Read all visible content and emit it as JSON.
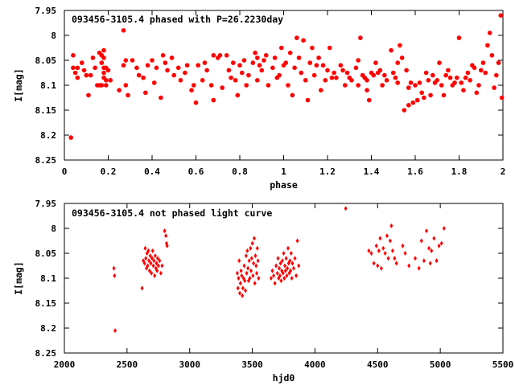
{
  "colors": {
    "marker": "#ff0000",
    "frame": "#000000",
    "background": "#ffffff"
  },
  "chart_data": [
    {
      "type": "scatter",
      "title": "093456-3105.4 phased with P=26.2230day",
      "xlabel": "phase",
      "ylabel": "I[mag]",
      "xlim": [
        0,
        2
      ],
      "ylim": [
        8.25,
        7.95
      ],
      "y_inverted": true,
      "grid": false,
      "legend": "none",
      "xticks": [
        "0",
        "0.2",
        "0.4",
        "0.6",
        "0.8",
        "1",
        "1.2",
        "1.4",
        "1.6",
        "1.8",
        "2"
      ],
      "yticks": [
        "7.95",
        "8",
        "8.05",
        "8.1",
        "8.15",
        "8.2",
        "8.25"
      ],
      "marker": "filled-circle-large",
      "points": [
        [
          0.03,
          8.205
        ],
        [
          0.04,
          8.04
        ],
        [
          0.04,
          8.065
        ],
        [
          0.05,
          8.075
        ],
        [
          0.06,
          8.065
        ],
        [
          0.06,
          8.085
        ],
        [
          0.08,
          8.055
        ],
        [
          0.09,
          8.07
        ],
        [
          0.1,
          8.08
        ],
        [
          0.11,
          8.12
        ],
        [
          0.12,
          8.08
        ],
        [
          0.13,
          8.045
        ],
        [
          0.14,
          8.065
        ],
        [
          0.15,
          8.1
        ],
        [
          0.16,
          8.035
        ],
        [
          0.16,
          8.1
        ],
        [
          0.17,
          8.04
        ],
        [
          0.17,
          8.055
        ],
        [
          0.17,
          8.1
        ],
        [
          0.18,
          8.03
        ],
        [
          0.18,
          8.045
        ],
        [
          0.18,
          8.065
        ],
        [
          0.18,
          8.075
        ],
        [
          0.18,
          8.085
        ],
        [
          0.19,
          8.09
        ],
        [
          0.19,
          8.1
        ],
        [
          0.19,
          8.065
        ],
        [
          0.2,
          8.07
        ],
        [
          0.21,
          8.09
        ],
        [
          0.25,
          8.11
        ],
        [
          0.27,
          7.99
        ],
        [
          0.27,
          8.06
        ],
        [
          0.28,
          8.05
        ],
        [
          0.28,
          8.1
        ],
        [
          0.29,
          8.12
        ],
        [
          0.31,
          8.05
        ],
        [
          0.33,
          8.065
        ],
        [
          0.34,
          8.08
        ],
        [
          0.36,
          8.085
        ],
        [
          0.37,
          8.115
        ],
        [
          0.38,
          8.06
        ],
        [
          0.4,
          8.05
        ],
        [
          0.41,
          8.095
        ],
        [
          0.42,
          8.065
        ],
        [
          0.44,
          8.125
        ],
        [
          0.45,
          8.04
        ],
        [
          0.46,
          8.055
        ],
        [
          0.47,
          8.07
        ],
        [
          0.49,
          8.045
        ],
        [
          0.5,
          8.08
        ],
        [
          0.52,
          8.065
        ],
        [
          0.53,
          8.09
        ],
        [
          0.55,
          8.075
        ],
        [
          0.56,
          8.06
        ],
        [
          0.58,
          8.11
        ],
        [
          0.59,
          8.1
        ],
        [
          0.6,
          8.135
        ],
        [
          0.61,
          8.06
        ],
        [
          0.63,
          8.09
        ],
        [
          0.64,
          8.055
        ],
        [
          0.65,
          8.07
        ],
        [
          0.67,
          8.1
        ],
        [
          0.68,
          8.04
        ],
        [
          0.68,
          8.13
        ],
        [
          0.7,
          8.045
        ],
        [
          0.71,
          8.04
        ],
        [
          0.72,
          8.105
        ],
        [
          0.74,
          8.04
        ],
        [
          0.75,
          8.07
        ],
        [
          0.76,
          8.085
        ],
        [
          0.77,
          8.055
        ],
        [
          0.78,
          8.09
        ],
        [
          0.79,
          8.12
        ],
        [
          0.8,
          8.06
        ],
        [
          0.81,
          8.075
        ],
        [
          0.82,
          8.05
        ],
        [
          0.83,
          8.1
        ],
        [
          0.84,
          8.08
        ],
        [
          0.86,
          8.055
        ],
        [
          0.87,
          8.035
        ],
        [
          0.88,
          8.09
        ],
        [
          0.88,
          8.045
        ],
        [
          0.89,
          8.06
        ],
        [
          0.9,
          8.07
        ],
        [
          0.91,
          8.05
        ],
        [
          0.92,
          8.04
        ],
        [
          0.93,
          8.1
        ],
        [
          0.95,
          8.065
        ],
        [
          0.96,
          8.045
        ],
        [
          0.97,
          8.085
        ],
        [
          0.98,
          8.08
        ],
        [
          0.99,
          8.025
        ],
        [
          1.0,
          8.06
        ],
        [
          1.01,
          8.055
        ],
        [
          1.02,
          8.1
        ],
        [
          1.03,
          8.035
        ],
        [
          1.04,
          8.12
        ],
        [
          1.05,
          8.065
        ],
        [
          1.06,
          8.005
        ],
        [
          1.07,
          8.045
        ],
        [
          1.08,
          8.075
        ],
        [
          1.09,
          8.01
        ],
        [
          1.1,
          8.09
        ],
        [
          1.11,
          8.13
        ],
        [
          1.12,
          8.055
        ],
        [
          1.13,
          8.025
        ],
        [
          1.14,
          8.08
        ],
        [
          1.15,
          8.06
        ],
        [
          1.16,
          8.045
        ],
        [
          1.17,
          8.11
        ],
        [
          1.18,
          8.06
        ],
        [
          1.19,
          8.09
        ],
        [
          1.2,
          8.07
        ],
        [
          1.21,
          8.025
        ],
        [
          1.22,
          8.085
        ],
        [
          1.23,
          8.075
        ],
        [
          1.24,
          8.085
        ],
        [
          1.26,
          8.06
        ],
        [
          1.27,
          8.07
        ],
        [
          1.28,
          8.1
        ],
        [
          1.29,
          8.075
        ],
        [
          1.3,
          8.085
        ],
        [
          1.31,
          8.09
        ],
        [
          1.33,
          8.065
        ],
        [
          1.34,
          8.05
        ],
        [
          1.34,
          8.1
        ],
        [
          1.35,
          8.005
        ],
        [
          1.36,
          8.08
        ],
        [
          1.37,
          8.085
        ],
        [
          1.38,
          8.09
        ],
        [
          1.38,
          8.11
        ],
        [
          1.39,
          8.13
        ],
        [
          1.4,
          8.075
        ],
        [
          1.41,
          8.08
        ],
        [
          1.42,
          8.055
        ],
        [
          1.43,
          8.075
        ],
        [
          1.44,
          8.07
        ],
        [
          1.45,
          8.1
        ],
        [
          1.46,
          8.08
        ],
        [
          1.47,
          8.09
        ],
        [
          1.49,
          8.03
        ],
        [
          1.5,
          8.075
        ],
        [
          1.51,
          8.085
        ],
        [
          1.52,
          8.095
        ],
        [
          1.52,
          8.055
        ],
        [
          1.53,
          8.02
        ],
        [
          1.54,
          8.045
        ],
        [
          1.55,
          8.15
        ],
        [
          1.56,
          8.07
        ],
        [
          1.57,
          8.105
        ],
        [
          1.57,
          8.14
        ],
        [
          1.58,
          8.095
        ],
        [
          1.59,
          8.135
        ],
        [
          1.6,
          8.1
        ],
        [
          1.61,
          8.13
        ],
        [
          1.62,
          8.095
        ],
        [
          1.63,
          8.115
        ],
        [
          1.64,
          8.125
        ],
        [
          1.65,
          8.075
        ],
        [
          1.66,
          8.09
        ],
        [
          1.67,
          8.12
        ],
        [
          1.68,
          8.08
        ],
        [
          1.69,
          8.095
        ],
        [
          1.7,
          8.09
        ],
        [
          1.71,
          8.055
        ],
        [
          1.72,
          8.1
        ],
        [
          1.73,
          8.12
        ],
        [
          1.74,
          8.08
        ],
        [
          1.75,
          8.07
        ],
        [
          1.76,
          8.085
        ],
        [
          1.77,
          8.1
        ],
        [
          1.78,
          8.095
        ],
        [
          1.79,
          8.085
        ],
        [
          1.8,
          8.005
        ],
        [
          1.81,
          8.095
        ],
        [
          1.82,
          8.11
        ],
        [
          1.83,
          8.085
        ],
        [
          1.84,
          8.075
        ],
        [
          1.85,
          8.09
        ],
        [
          1.86,
          8.06
        ],
        [
          1.87,
          8.065
        ],
        [
          1.88,
          8.115
        ],
        [
          1.89,
          8.1
        ],
        [
          1.9,
          8.07
        ],
        [
          1.91,
          8.055
        ],
        [
          1.92,
          8.075
        ],
        [
          1.93,
          8.02
        ],
        [
          1.94,
          7.995
        ],
        [
          1.95,
          8.04
        ],
        [
          1.96,
          8.105
        ],
        [
          1.97,
          8.08
        ],
        [
          1.98,
          8.055
        ],
        [
          1.99,
          7.96
        ],
        [
          1.995,
          8.125
        ]
      ]
    },
    {
      "type": "scatter",
      "title": "093456-3105.4 not phased light curve",
      "xlabel": "hjd0",
      "ylabel": "I[mag]",
      "xlim": [
        2000,
        5500
      ],
      "ylim": [
        8.25,
        7.95
      ],
      "y_inverted": true,
      "grid": false,
      "legend": "none",
      "xticks": [
        "2000",
        "2500",
        "3000",
        "3500",
        "4000",
        "4500",
        "5000",
        "5500"
      ],
      "yticks": [
        "7.95",
        "8",
        "8.05",
        "8.1",
        "8.15",
        "8.2",
        "8.25"
      ],
      "marker": "filled-diamond-small",
      "points": [
        [
          2395,
          8.08
        ],
        [
          2400,
          8.095
        ],
        [
          2405,
          8.205
        ],
        [
          2620,
          8.12
        ],
        [
          2630,
          8.065
        ],
        [
          2640,
          8.07
        ],
        [
          2645,
          8.04
        ],
        [
          2650,
          8.06
        ],
        [
          2655,
          8.08
        ],
        [
          2660,
          8.05
        ],
        [
          2665,
          8.075
        ],
        [
          2670,
          8.045
        ],
        [
          2675,
          8.065
        ],
        [
          2680,
          8.085
        ],
        [
          2685,
          8.055
        ],
        [
          2690,
          8.07
        ],
        [
          2695,
          8.09
        ],
        [
          2700,
          8.06
        ],
        [
          2705,
          8.045
        ],
        [
          2710,
          8.075
        ],
        [
          2715,
          8.065
        ],
        [
          2720,
          8.095
        ],
        [
          2725,
          8.055
        ],
        [
          2730,
          8.08
        ],
        [
          2735,
          8.07
        ],
        [
          2740,
          8.085
        ],
        [
          2745,
          8.06
        ],
        [
          2750,
          8.075
        ],
        [
          2760,
          8.065
        ],
        [
          2770,
          8.09
        ],
        [
          2780,
          8.075
        ],
        [
          2800,
          8.005
        ],
        [
          2810,
          8.015
        ],
        [
          2815,
          8.03
        ],
        [
          2820,
          8.035
        ],
        [
          3380,
          8.09
        ],
        [
          3385,
          8.12
        ],
        [
          3390,
          8.1
        ],
        [
          3395,
          8.065
        ],
        [
          3400,
          8.13
        ],
        [
          3405,
          8.11
        ],
        [
          3410,
          8.085
        ],
        [
          3415,
          8.095
        ],
        [
          3420,
          8.135
        ],
        [
          3425,
          8.12
        ],
        [
          3430,
          8.1
        ],
        [
          3435,
          8.075
        ],
        [
          3440,
          8.105
        ],
        [
          3445,
          8.125
        ],
        [
          3450,
          8.055
        ],
        [
          3455,
          8.09
        ],
        [
          3460,
          8.045
        ],
        [
          3465,
          8.08
        ],
        [
          3470,
          8.105
        ],
        [
          3475,
          8.065
        ],
        [
          3480,
          8.1
        ],
        [
          3485,
          8.04
        ],
        [
          3490,
          8.085
        ],
        [
          3495,
          8.06
        ],
        [
          3500,
          8.03
        ],
        [
          3505,
          8.095
        ],
        [
          3510,
          8.07
        ],
        [
          3515,
          8.02
        ],
        [
          3520,
          8.11
        ],
        [
          3525,
          8.055
        ],
        [
          3530,
          8.075
        ],
        [
          3535,
          8.09
        ],
        [
          3540,
          8.04
        ],
        [
          3545,
          8.065
        ],
        [
          3550,
          8.1
        ],
        [
          3650,
          8.1
        ],
        [
          3660,
          8.085
        ],
        [
          3670,
          8.095
        ],
        [
          3680,
          8.11
        ],
        [
          3690,
          8.075
        ],
        [
          3700,
          8.09
        ],
        [
          3705,
          8.06
        ],
        [
          3710,
          8.1
        ],
        [
          3715,
          8.08
        ],
        [
          3720,
          8.095
        ],
        [
          3725,
          8.07
        ],
        [
          3730,
          8.105
        ],
        [
          3735,
          8.085
        ],
        [
          3740,
          8.065
        ],
        [
          3745,
          8.09
        ],
        [
          3750,
          8.05
        ],
        [
          3755,
          8.1
        ],
        [
          3760,
          8.075
        ],
        [
          3765,
          8.085
        ],
        [
          3770,
          8.06
        ],
        [
          3775,
          8.095
        ],
        [
          3780,
          8.08
        ],
        [
          3785,
          8.04
        ],
        [
          3790,
          8.07
        ],
        [
          3795,
          8.09
        ],
        [
          3800,
          8.065
        ],
        [
          3805,
          8.085
        ],
        [
          3810,
          8.05
        ],
        [
          3815,
          8.1
        ],
        [
          3820,
          8.07
        ],
        [
          3830,
          8.08
        ],
        [
          3840,
          8.06
        ],
        [
          3850,
          8.095
        ],
        [
          3860,
          8.025
        ],
        [
          3870,
          8.075
        ],
        [
          4245,
          7.96
        ],
        [
          4430,
          8.045
        ],
        [
          4450,
          8.05
        ],
        [
          4470,
          8.07
        ],
        [
          4490,
          8.035
        ],
        [
          4500,
          8.075
        ],
        [
          4510,
          8.045
        ],
        [
          4520,
          8.02
        ],
        [
          4530,
          8.08
        ],
        [
          4545,
          8.04
        ],
        [
          4560,
          8.05
        ],
        [
          4575,
          8.015
        ],
        [
          4585,
          8.06
        ],
        [
          4600,
          8.025
        ],
        [
          4610,
          7.995
        ],
        [
          4620,
          8.045
        ],
        [
          4635,
          8.06
        ],
        [
          4650,
          8.07
        ],
        [
          4700,
          8.035
        ],
        [
          4720,
          8.05
        ],
        [
          4750,
          8.075
        ],
        [
          4800,
          8.06
        ],
        [
          4830,
          8.08
        ],
        [
          4850,
          8.025
        ],
        [
          4870,
          8.065
        ],
        [
          4890,
          8.005
        ],
        [
          4910,
          8.04
        ],
        [
          4920,
          8.07
        ],
        [
          4930,
          8.045
        ],
        [
          4950,
          8.02
        ],
        [
          4970,
          8.065
        ],
        [
          4990,
          8.035
        ],
        [
          5010,
          8.03
        ],
        [
          5030,
          8.0
        ]
      ]
    }
  ]
}
